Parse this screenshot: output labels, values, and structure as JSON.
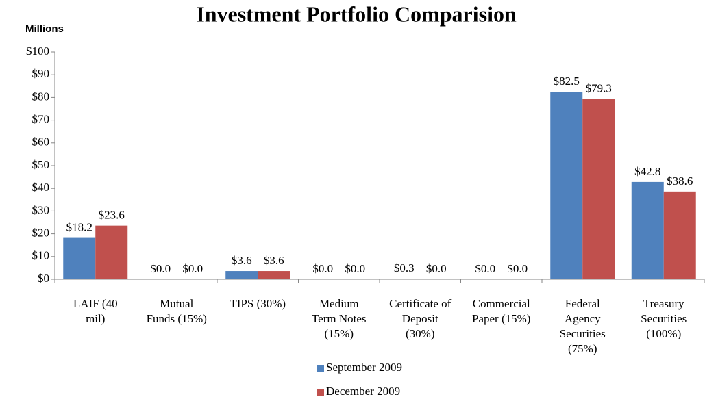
{
  "chart_data": {
    "type": "bar",
    "title": "Investment Portfolio Comparision",
    "y_label": "Millions",
    "categories": [
      "LAIF (40\nmil)",
      "Mutual\nFunds  (15%)",
      "TIPS (30%)",
      "Medium\nTerm Notes\n(15%)",
      "Certificate of\nDeposit\n(30%)",
      "Commercial\nPaper  (15%)",
      "Federal\nAgency\nSecurities\n(75%)",
      "Treasury\nSecurities\n(100%)"
    ],
    "series": [
      {
        "name": "September 2009",
        "color": "#4f81bd",
        "values": [
          18.2,
          0,
          3.6,
          0,
          0.3,
          0,
          82.5,
          42.8
        ],
        "value_labels": [
          "$18.2",
          "$0.0",
          "$3.6",
          "$0.0",
          "$0.3",
          "$0.0",
          "$82.5",
          "$42.8"
        ]
      },
      {
        "name": "December 2009",
        "color": "#c0504d",
        "values": [
          23.6,
          0,
          3.6,
          0,
          0,
          0,
          79.3,
          38.6
        ],
        "value_labels": [
          "$23.6",
          "$0.0",
          "$3.6",
          "$0.0",
          "$0.0",
          "$0.0",
          "$79.3",
          "$38.6"
        ]
      }
    ],
    "ylim": [
      0,
      100
    ],
    "yticks": [
      {
        "value": 0,
        "label": "$0"
      },
      {
        "value": 10,
        "label": "$10"
      },
      {
        "value": 20,
        "label": "$20"
      },
      {
        "value": 30,
        "label": "$30"
      },
      {
        "value": 40,
        "label": "$40"
      },
      {
        "value": 50,
        "label": "$50"
      },
      {
        "value": 60,
        "label": "$60"
      },
      {
        "value": 70,
        "label": "$70"
      },
      {
        "value": 80,
        "label": "$80"
      },
      {
        "value": 90,
        "label": "$90"
      },
      {
        "value": 100,
        "label": "$100"
      }
    ],
    "grid": false,
    "legend": "bottom"
  }
}
